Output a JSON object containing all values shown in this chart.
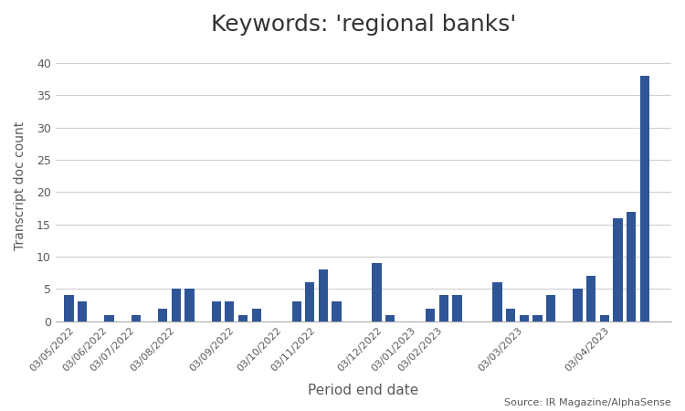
{
  "title": "Keywords: 'regional banks'",
  "xlabel": "Period end date",
  "ylabel": "Transcript doc count",
  "source_text": "Source: IR Magazine/AlphaSense",
  "bar_color": "#2F5597",
  "background_color": "#ffffff",
  "ylim": [
    0,
    42
  ],
  "yticks": [
    0,
    5,
    10,
    15,
    20,
    25,
    30,
    35,
    40
  ],
  "month_labels": [
    "03/05/2022",
    "03/06/2022",
    "03/07/2022",
    "03/08/2022",
    "03/09/2022",
    "03/10/2022",
    "03/11/2022",
    "03/12/2022",
    "03/01/2023",
    "03/02/2023",
    "03/03/2023",
    "03/04/2023"
  ],
  "bar_x": [
    0,
    1,
    3,
    5,
    7,
    8,
    9,
    11,
    12,
    13,
    14,
    17,
    18,
    19,
    20,
    23,
    24,
    27,
    28,
    29,
    32,
    33,
    34,
    35,
    36,
    38,
    39,
    40,
    41,
    42,
    43
  ],
  "bar_val": [
    4,
    3,
    1,
    1,
    2,
    5,
    5,
    3,
    3,
    1,
    2,
    3,
    6,
    8,
    3,
    9,
    1,
    2,
    4,
    4,
    6,
    2,
    1,
    1,
    4,
    5,
    7,
    1,
    16,
    17,
    38
  ],
  "month_tick_x": [
    0.5,
    3,
    5,
    8,
    12.5,
    16,
    18.5,
    23.5,
    26,
    28,
    34,
    40.5
  ]
}
